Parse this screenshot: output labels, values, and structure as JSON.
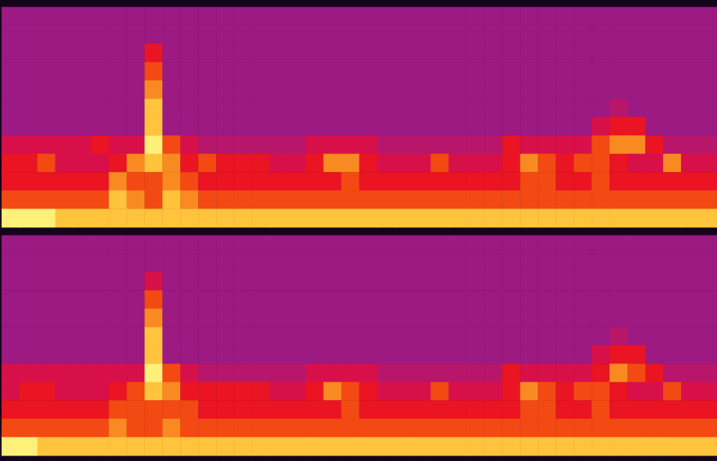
{
  "chart_data": [
    {
      "type": "heatmap",
      "tick_labels": false,
      "color_range": [
        0,
        10
      ],
      "cells": [
        [
          3,
          3,
          3,
          3,
          3,
          3,
          3,
          3,
          3,
          3,
          3,
          3,
          3,
          3,
          3,
          3,
          3,
          3,
          3,
          3,
          3,
          3,
          3,
          3,
          3,
          3,
          3,
          3,
          3,
          3,
          3,
          3,
          3,
          3,
          3,
          3,
          3,
          3,
          3,
          3
        ],
        [
          3,
          3,
          3,
          3,
          3,
          3,
          3,
          3,
          3,
          3,
          3,
          3,
          3,
          3,
          3,
          3,
          3,
          3,
          3,
          3,
          3,
          3,
          3,
          3,
          3,
          3,
          3,
          3,
          3,
          3,
          3,
          3,
          3,
          3,
          3,
          3,
          3,
          3,
          3,
          3
        ],
        [
          3,
          3,
          3,
          3,
          3,
          3,
          3,
          3,
          6,
          3,
          3,
          3,
          3,
          3,
          3,
          3,
          3,
          3,
          3,
          3,
          3,
          3,
          3,
          3,
          3,
          3,
          3,
          3,
          3,
          3,
          3,
          3,
          3,
          3,
          3,
          3,
          3,
          3,
          3,
          3
        ],
        [
          3,
          3,
          3,
          3,
          3,
          3,
          3,
          3,
          7,
          3,
          3,
          3,
          3,
          3,
          3,
          3,
          3,
          3,
          3,
          3,
          3,
          3,
          3,
          3,
          3,
          3,
          3,
          3,
          3,
          3,
          3,
          3,
          3,
          3,
          3,
          3,
          3,
          3,
          3,
          3
        ],
        [
          3,
          3,
          3,
          3,
          3,
          3,
          3,
          3,
          8,
          3,
          3,
          3,
          3,
          3,
          3,
          3,
          3,
          3,
          3,
          3,
          3,
          3,
          3,
          3,
          3,
          3,
          3,
          3,
          3,
          3,
          3,
          3,
          3,
          3,
          3,
          3,
          3,
          3,
          3,
          3
        ],
        [
          3,
          3,
          3,
          3,
          3,
          3,
          3,
          3,
          9,
          3,
          3,
          3,
          3,
          3,
          3,
          3,
          3,
          3,
          3,
          3,
          3,
          3,
          3,
          3,
          3,
          3,
          3,
          3,
          3,
          3,
          3,
          3,
          3,
          3,
          4,
          3,
          3,
          3,
          3,
          3
        ],
        [
          3,
          3,
          3,
          3,
          3,
          3,
          3,
          3,
          9,
          3,
          3,
          3,
          3,
          3,
          3,
          3,
          3,
          3,
          3,
          3,
          3,
          3,
          3,
          3,
          3,
          3,
          3,
          3,
          3,
          3,
          3,
          3,
          3,
          5,
          6,
          6,
          3,
          3,
          3,
          3
        ],
        [
          5,
          5,
          5,
          5,
          5,
          6,
          5,
          5,
          10,
          7,
          5,
          4,
          4,
          4,
          4,
          4,
          4,
          5,
          5,
          5,
          5,
          4,
          4,
          4,
          4,
          4,
          4,
          4,
          6,
          5,
          5,
          5,
          5,
          7,
          8,
          8,
          6,
          4,
          4,
          4
        ],
        [
          6,
          6,
          7,
          5,
          5,
          5,
          6,
          8,
          9,
          8,
          6,
          7,
          6,
          6,
          6,
          5,
          5,
          6,
          8,
          8,
          6,
          5,
          5,
          5,
          7,
          5,
          5,
          5,
          6,
          8,
          7,
          6,
          7,
          7,
          6,
          5,
          5,
          8,
          5,
          5
        ],
        [
          6,
          6,
          6,
          6,
          6,
          6,
          8,
          7,
          7,
          8,
          7,
          6,
          6,
          6,
          6,
          6,
          6,
          6,
          6,
          7,
          6,
          6,
          6,
          6,
          6,
          6,
          6,
          6,
          6,
          7,
          7,
          6,
          6,
          7,
          6,
          6,
          6,
          6,
          6,
          6
        ],
        [
          7,
          7,
          7,
          7,
          7,
          7,
          9,
          8,
          7,
          9,
          8,
          7,
          7,
          7,
          7,
          7,
          7,
          7,
          7,
          7,
          7,
          7,
          7,
          7,
          7,
          7,
          7,
          7,
          7,
          7,
          7,
          7,
          7,
          7,
          7,
          7,
          7,
          7,
          7,
          7
        ],
        [
          10,
          10,
          10,
          9,
          9,
          9,
          9,
          9,
          9,
          9,
          9,
          9,
          9,
          9,
          9,
          9,
          9,
          9,
          9,
          9,
          9,
          9,
          9,
          9,
          9,
          9,
          9,
          9,
          9,
          9,
          9,
          9,
          9,
          9,
          9,
          9,
          9,
          9,
          9,
          9
        ]
      ]
    },
    {
      "type": "heatmap",
      "tick_labels": false,
      "color_range": [
        0,
        10
      ],
      "cells": [
        [
          3,
          3,
          3,
          3,
          3,
          3,
          3,
          3,
          3,
          3,
          3,
          3,
          3,
          3,
          3,
          3,
          3,
          3,
          3,
          3,
          3,
          3,
          3,
          3,
          3,
          3,
          3,
          3,
          3,
          3,
          3,
          3,
          3,
          3,
          3,
          3,
          3,
          3,
          3,
          3
        ],
        [
          3,
          3,
          3,
          3,
          3,
          3,
          3,
          3,
          3,
          3,
          3,
          3,
          3,
          3,
          3,
          3,
          3,
          3,
          3,
          3,
          3,
          3,
          3,
          3,
          3,
          3,
          3,
          3,
          3,
          3,
          3,
          3,
          3,
          3,
          3,
          3,
          3,
          3,
          3,
          3
        ],
        [
          3,
          3,
          3,
          3,
          3,
          3,
          3,
          3,
          5,
          3,
          3,
          3,
          3,
          3,
          3,
          3,
          3,
          3,
          3,
          3,
          3,
          3,
          3,
          3,
          3,
          3,
          3,
          3,
          3,
          3,
          3,
          3,
          3,
          3,
          3,
          3,
          3,
          3,
          3,
          3
        ],
        [
          3,
          3,
          3,
          3,
          3,
          3,
          3,
          3,
          7,
          3,
          3,
          3,
          3,
          3,
          3,
          3,
          3,
          3,
          3,
          3,
          3,
          3,
          3,
          3,
          3,
          3,
          3,
          3,
          3,
          3,
          3,
          3,
          3,
          3,
          3,
          3,
          3,
          3,
          3,
          3
        ],
        [
          3,
          3,
          3,
          3,
          3,
          3,
          3,
          3,
          8,
          3,
          3,
          3,
          3,
          3,
          3,
          3,
          3,
          3,
          3,
          3,
          3,
          3,
          3,
          3,
          3,
          3,
          3,
          3,
          3,
          3,
          3,
          3,
          3,
          3,
          3,
          3,
          3,
          3,
          3,
          3
        ],
        [
          3,
          3,
          3,
          3,
          3,
          3,
          3,
          3,
          9,
          3,
          3,
          3,
          3,
          3,
          3,
          3,
          3,
          3,
          3,
          3,
          3,
          3,
          3,
          3,
          3,
          3,
          3,
          3,
          3,
          3,
          3,
          3,
          3,
          3,
          4,
          3,
          3,
          3,
          3,
          3
        ],
        [
          3,
          3,
          3,
          3,
          3,
          3,
          3,
          3,
          9,
          3,
          3,
          3,
          3,
          3,
          3,
          3,
          3,
          3,
          3,
          3,
          3,
          3,
          3,
          3,
          3,
          3,
          3,
          3,
          3,
          3,
          3,
          3,
          3,
          5,
          6,
          6,
          3,
          3,
          3,
          3
        ],
        [
          5,
          5,
          5,
          5,
          5,
          5,
          5,
          5,
          10,
          7,
          5,
          4,
          4,
          4,
          4,
          4,
          4,
          5,
          5,
          5,
          5,
          4,
          4,
          4,
          4,
          4,
          4,
          4,
          6,
          5,
          5,
          5,
          5,
          6,
          8,
          7,
          6,
          4,
          4,
          4
        ],
        [
          5,
          6,
          6,
          5,
          5,
          5,
          6,
          7,
          9,
          8,
          6,
          6,
          6,
          6,
          6,
          5,
          5,
          6,
          8,
          7,
          6,
          5,
          5,
          5,
          7,
          5,
          5,
          5,
          6,
          8,
          7,
          6,
          7,
          7,
          6,
          5,
          5,
          7,
          5,
          5
        ],
        [
          6,
          6,
          6,
          6,
          6,
          6,
          7,
          7,
          7,
          7,
          7,
          6,
          6,
          6,
          6,
          6,
          6,
          6,
          6,
          7,
          6,
          6,
          6,
          6,
          6,
          6,
          6,
          6,
          6,
          7,
          7,
          6,
          6,
          7,
          6,
          6,
          6,
          6,
          6,
          6
        ],
        [
          7,
          7,
          7,
          7,
          7,
          7,
          8,
          7,
          7,
          8,
          7,
          7,
          7,
          7,
          7,
          7,
          7,
          7,
          7,
          7,
          7,
          7,
          7,
          7,
          7,
          7,
          7,
          7,
          7,
          7,
          7,
          7,
          7,
          7,
          7,
          7,
          7,
          7,
          7,
          7
        ],
        [
          10,
          10,
          9,
          9,
          9,
          9,
          9,
          9,
          9,
          9,
          9,
          9,
          9,
          9,
          9,
          9,
          9,
          9,
          9,
          9,
          9,
          9,
          9,
          9,
          9,
          9,
          9,
          9,
          9,
          9,
          9,
          9,
          9,
          9,
          9,
          9,
          9,
          9,
          9,
          9
        ]
      ]
    }
  ]
}
